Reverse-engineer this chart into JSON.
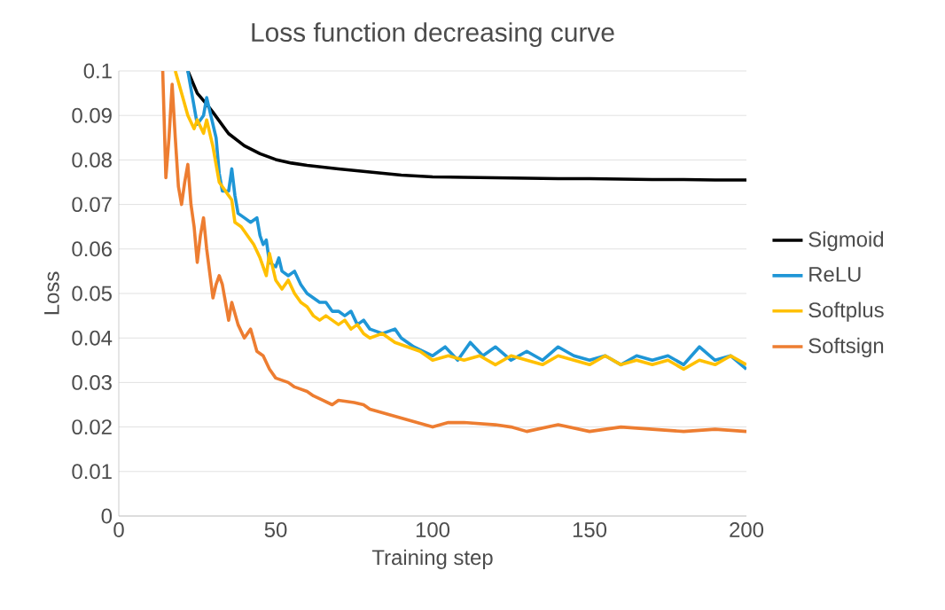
{
  "chart_data": {
    "type": "line",
    "title": "Loss function decreasing curve",
    "xlabel": "Training step",
    "ylabel": "Loss",
    "xlim": [
      0,
      200
    ],
    "xticks": [
      0,
      50,
      100,
      150,
      200
    ],
    "ylim": [
      0,
      0.1
    ],
    "yticks": [
      0,
      0.01,
      0.02,
      0.03,
      0.04,
      0.05,
      0.06,
      0.07,
      0.08,
      0.09,
      0.1
    ],
    "grid": "y",
    "legend": "right",
    "marker": "none",
    "line_style": "solid",
    "series": [
      {
        "name": "Sigmoid",
        "color": "#000000",
        "x": [
          22,
          25,
          28,
          30,
          35,
          40,
          45,
          50,
          55,
          60,
          70,
          80,
          90,
          100,
          110,
          120,
          130,
          140,
          150,
          160,
          170,
          180,
          190,
          200
        ],
        "values": [
          0.1,
          0.095,
          0.0925,
          0.0907,
          0.0859,
          0.0832,
          0.0814,
          0.0801,
          0.0793,
          0.0788,
          0.078,
          0.0773,
          0.0766,
          0.0762,
          0.0761,
          0.076,
          0.0759,
          0.0758,
          0.0758,
          0.0757,
          0.0756,
          0.0756,
          0.0755,
          0.0755
        ]
      },
      {
        "name": "ReLU",
        "color": "#1f96d6",
        "x": [
          22,
          25,
          27,
          28,
          30,
          31,
          32,
          33,
          35,
          36,
          37,
          38,
          40,
          42,
          44,
          45,
          46,
          47,
          48,
          50,
          51,
          52,
          54,
          56,
          58,
          60,
          62,
          64,
          66,
          68,
          70,
          72,
          74,
          76,
          78,
          80,
          84,
          88,
          90,
          94,
          100,
          104,
          108,
          112,
          116,
          120,
          125,
          130,
          135,
          140,
          145,
          150,
          155,
          160,
          165,
          170,
          175,
          180,
          185,
          190,
          195,
          200
        ],
        "values": [
          0.1,
          0.088,
          0.09,
          0.094,
          0.088,
          0.085,
          0.077,
          0.073,
          0.073,
          0.078,
          0.072,
          0.068,
          0.067,
          0.066,
          0.067,
          0.063,
          0.061,
          0.062,
          0.057,
          0.056,
          0.058,
          0.055,
          0.054,
          0.055,
          0.052,
          0.05,
          0.049,
          0.048,
          0.048,
          0.046,
          0.046,
          0.045,
          0.046,
          0.043,
          0.044,
          0.042,
          0.041,
          0.042,
          0.04,
          0.038,
          0.036,
          0.038,
          0.035,
          0.039,
          0.036,
          0.038,
          0.035,
          0.037,
          0.035,
          0.038,
          0.036,
          0.035,
          0.036,
          0.034,
          0.036,
          0.035,
          0.036,
          0.034,
          0.038,
          0.035,
          0.036,
          0.033
        ]
      },
      {
        "name": "Softplus",
        "color": "#ffc000",
        "x": [
          18,
          20,
          22,
          24,
          25,
          27,
          28,
          30,
          32,
          34,
          36,
          37,
          39,
          41,
          43,
          45,
          47,
          48,
          50,
          52,
          54,
          56,
          58,
          60,
          62,
          64,
          66,
          68,
          70,
          72,
          74,
          76,
          78,
          80,
          84,
          88,
          92,
          96,
          100,
          105,
          110,
          115,
          120,
          125,
          130,
          135,
          140,
          145,
          150,
          155,
          160,
          165,
          170,
          175,
          180,
          185,
          190,
          195,
          200
        ],
        "values": [
          0.1,
          0.095,
          0.09,
          0.087,
          0.089,
          0.086,
          0.089,
          0.083,
          0.075,
          0.073,
          0.071,
          0.066,
          0.065,
          0.063,
          0.061,
          0.058,
          0.054,
          0.059,
          0.053,
          0.051,
          0.053,
          0.05,
          0.048,
          0.047,
          0.045,
          0.044,
          0.045,
          0.044,
          0.043,
          0.044,
          0.042,
          0.043,
          0.041,
          0.04,
          0.041,
          0.039,
          0.038,
          0.037,
          0.035,
          0.036,
          0.035,
          0.036,
          0.034,
          0.036,
          0.035,
          0.034,
          0.036,
          0.035,
          0.034,
          0.036,
          0.034,
          0.035,
          0.034,
          0.035,
          0.033,
          0.035,
          0.034,
          0.036,
          0.034
        ]
      },
      {
        "name": "Softsign",
        "color": "#ed7d31",
        "x": [
          14,
          15,
          16,
          17,
          18,
          19,
          20,
          21,
          22,
          23,
          24,
          25,
          26,
          27,
          28,
          30,
          31,
          32,
          33,
          35,
          36,
          38,
          40,
          42,
          44,
          46,
          48,
          50,
          54,
          56,
          60,
          62,
          65,
          68,
          70,
          75,
          78,
          80,
          85,
          90,
          95,
          100,
          105,
          110,
          120,
          125,
          130,
          140,
          150,
          160,
          170,
          180,
          190,
          200
        ],
        "values": [
          0.1,
          0.076,
          0.085,
          0.097,
          0.085,
          0.074,
          0.07,
          0.075,
          0.079,
          0.07,
          0.065,
          0.057,
          0.063,
          0.067,
          0.06,
          0.049,
          0.052,
          0.054,
          0.052,
          0.044,
          0.048,
          0.043,
          0.04,
          0.042,
          0.037,
          0.036,
          0.033,
          0.031,
          0.03,
          0.029,
          0.028,
          0.027,
          0.026,
          0.025,
          0.026,
          0.0255,
          0.025,
          0.024,
          0.023,
          0.022,
          0.021,
          0.02,
          0.021,
          0.021,
          0.0205,
          0.02,
          0.019,
          0.0205,
          0.019,
          0.02,
          0.0195,
          0.019,
          0.0195,
          0.019
        ]
      }
    ]
  }
}
